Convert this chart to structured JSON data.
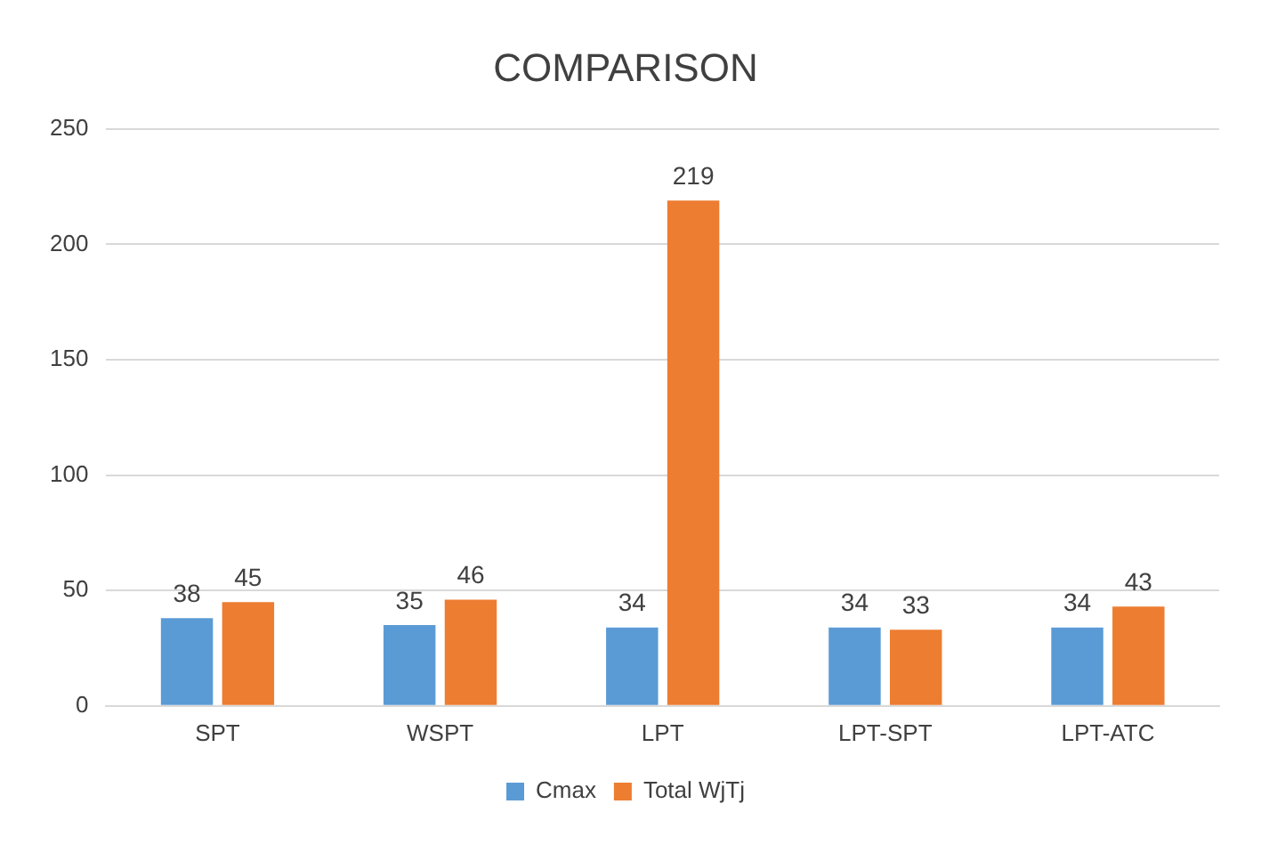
{
  "chart_data": {
    "type": "bar",
    "title": "COMPARISON",
    "categories": [
      "SPT",
      "WSPT",
      "LPT",
      "LPT-SPT",
      "LPT-ATC"
    ],
    "series": [
      {
        "name": "Cmax",
        "color": "#5b9bd5",
        "values": [
          38,
          35,
          34,
          34,
          34
        ]
      },
      {
        "name": "Total WjTj",
        "color": "#ed7d31",
        "values": [
          45,
          46,
          219,
          33,
          43
        ]
      }
    ],
    "ylim": [
      0,
      250
    ],
    "yticks": [
      0,
      50,
      100,
      150,
      200,
      250
    ],
    "grid": "y",
    "legend": "bottom",
    "data_labels": true
  }
}
